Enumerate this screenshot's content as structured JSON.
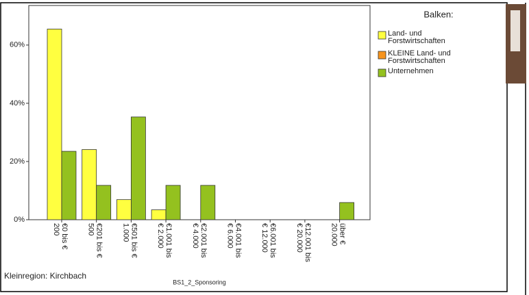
{
  "chart_data": {
    "type": "bar",
    "legend_title": "Balken:",
    "x_label": "BS1_2_Sponsoring",
    "footnote": "Kleinregion: Kirchbach",
    "categories": [
      "€0 bis € 200",
      "€201 bis € 500",
      "€501 bis € 1.000",
      "€1.001 bis € 2.000",
      "€2.001 bis € 4.000",
      "€4.001 bis € 6.000",
      "€6.001 bis € 12.000",
      "€12.001 bis € 20.000",
      "über € 20.000"
    ],
    "series": [
      {
        "name": "Land- und Forstwirtschaften",
        "color": "#ffff40",
        "values": [
          65.5,
          24.1,
          6.9,
          3.4,
          0,
          0,
          0,
          0,
          0
        ]
      },
      {
        "name": "KLEINE Land- und Forstwirtschaften",
        "color": "#f7941d",
        "values": [
          null,
          null,
          null,
          null,
          null,
          null,
          null,
          null,
          null
        ]
      },
      {
        "name": "Unternehmen",
        "color": "#94c11f",
        "values": [
          23.5,
          11.8,
          35.3,
          11.8,
          11.8,
          0,
          0,
          0,
          5.9
        ]
      }
    ],
    "ylim": [
      0,
      73.6
    ],
    "yticks": [
      {
        "value": 0,
        "label": "0%"
      },
      {
        "value": 20,
        "label": "20%"
      },
      {
        "value": 40,
        "label": "40%"
      },
      {
        "value": 60,
        "label": "60%"
      }
    ]
  }
}
